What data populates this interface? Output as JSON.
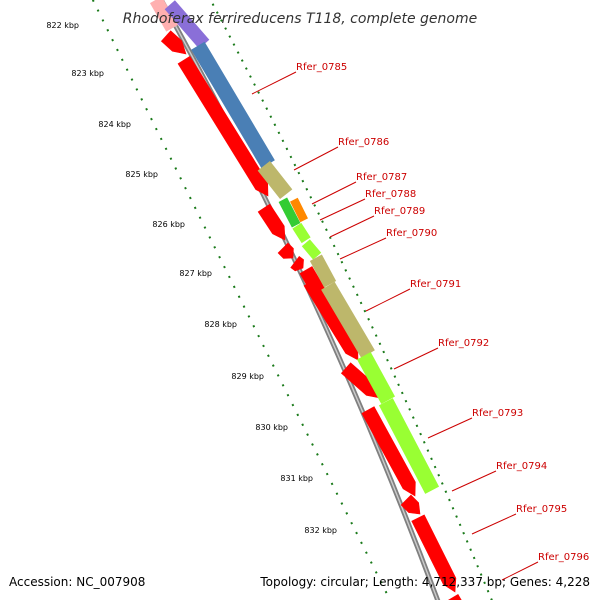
{
  "title": "Rhodoferax ferrireducens T118, complete genome",
  "accession": "Accession: NC_007908",
  "topology": "Topology: circular; Length: 4,712,337 bp; Genes: 4,228",
  "ticks": [
    "822 kbp",
    "823 kbp",
    "824 kbp",
    "825 kbp",
    "826 kbp",
    "827 kbp",
    "828 kbp",
    "829 kbp",
    "830 kbp",
    "831 kbp",
    "832 kbp"
  ],
  "genes": [
    {
      "name": "Rfer_0785"
    },
    {
      "name": "Rfer_0786"
    },
    {
      "name": "Rfer_0787"
    },
    {
      "name": "Rfer_0788"
    },
    {
      "name": "Rfer_0789"
    },
    {
      "name": "Rfer_0790"
    },
    {
      "name": "Rfer_0791"
    },
    {
      "name": "Rfer_0792"
    },
    {
      "name": "Rfer_0793"
    },
    {
      "name": "Rfer_0794"
    },
    {
      "name": "Rfer_0795"
    },
    {
      "name": "Rfer_0796"
    }
  ],
  "colors": {
    "cds": "#ff0000",
    "backbone": "#808080",
    "tick_ring": "#1a7a1a",
    "blue": "#4a7fb5",
    "khaki": "#bdb76b",
    "lime": "#99ff33",
    "green": "#33cc33",
    "orange": "#ff8800",
    "purple": "#8a6fd8",
    "pink": "#ffb0b0"
  }
}
